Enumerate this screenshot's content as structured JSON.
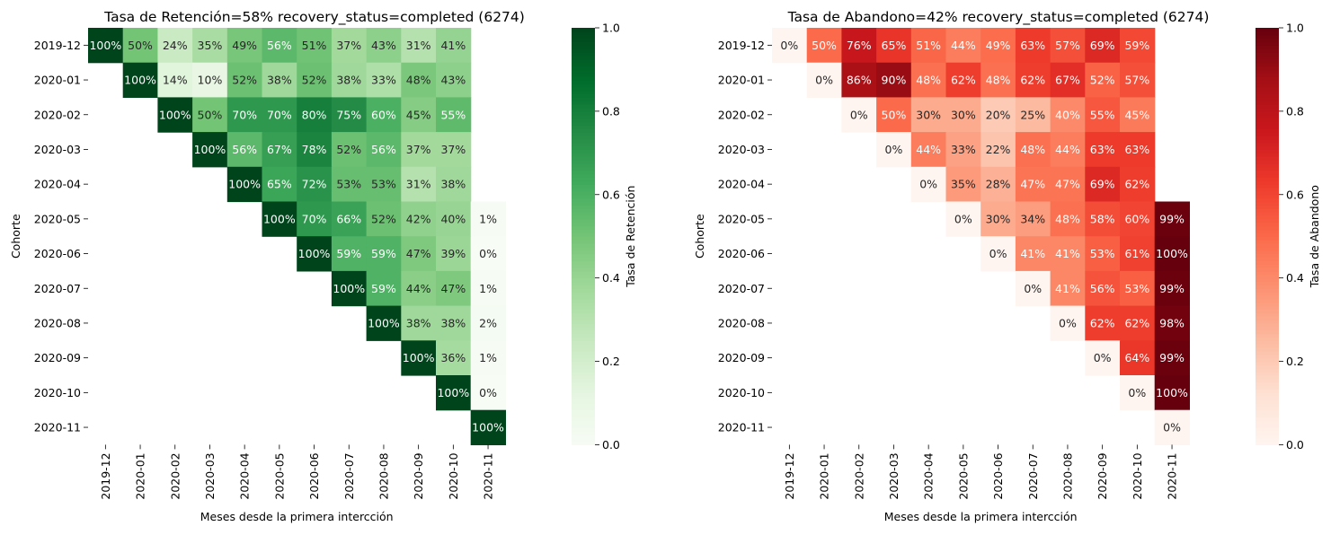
{
  "chart_data": [
    {
      "type": "heatmap",
      "title": "Tasa de Retención=58% recovery_status=completed (6274)",
      "xlabel": "Meses desde la primera intercción",
      "ylabel": "Cohorte",
      "colorbar_label": "Tasa de Retención",
      "colormap": "Greens",
      "colorbar_range": [
        0,
        1
      ],
      "colorbar_ticks": [
        "0.0",
        "0.2",
        "0.4",
        "0.6",
        "0.8",
        "1.0"
      ],
      "rows": [
        "2019-12",
        "2020-01",
        "2020-02",
        "2020-03",
        "2020-04",
        "2020-05",
        "2020-06",
        "2020-07",
        "2020-08",
        "2020-09",
        "2020-10",
        "2020-11"
      ],
      "columns": [
        "2019-12",
        "2020-01",
        "2020-02",
        "2020-03",
        "2020-04",
        "2020-05",
        "2020-06",
        "2020-07",
        "2020-08",
        "2020-09",
        "2020-10",
        "2020-11"
      ],
      "values": [
        [
          1.0,
          0.5,
          0.24,
          0.35,
          0.49,
          0.56,
          0.51,
          0.37,
          0.43,
          0.31,
          0.41,
          null
        ],
        [
          null,
          1.0,
          0.14,
          0.1,
          0.52,
          0.38,
          0.52,
          0.38,
          0.33,
          0.48,
          0.43,
          null
        ],
        [
          null,
          null,
          1.0,
          0.5,
          0.7,
          0.7,
          0.8,
          0.75,
          0.6,
          0.45,
          0.55,
          null
        ],
        [
          null,
          null,
          null,
          1.0,
          0.56,
          0.67,
          0.78,
          0.52,
          0.56,
          0.37,
          0.37,
          null
        ],
        [
          null,
          null,
          null,
          null,
          1.0,
          0.65,
          0.72,
          0.53,
          0.53,
          0.31,
          0.38,
          null
        ],
        [
          null,
          null,
          null,
          null,
          null,
          1.0,
          0.7,
          0.66,
          0.52,
          0.42,
          0.4,
          0.01
        ],
        [
          null,
          null,
          null,
          null,
          null,
          null,
          1.0,
          0.59,
          0.59,
          0.47,
          0.39,
          0.0
        ],
        [
          null,
          null,
          null,
          null,
          null,
          null,
          null,
          1.0,
          0.59,
          0.44,
          0.47,
          0.01
        ],
        [
          null,
          null,
          null,
          null,
          null,
          null,
          null,
          null,
          1.0,
          0.38,
          0.38,
          0.02
        ],
        [
          null,
          null,
          null,
          null,
          null,
          null,
          null,
          null,
          null,
          1.0,
          0.36,
          0.01
        ],
        [
          null,
          null,
          null,
          null,
          null,
          null,
          null,
          null,
          null,
          null,
          1.0,
          0.0
        ],
        [
          null,
          null,
          null,
          null,
          null,
          null,
          null,
          null,
          null,
          null,
          null,
          1.0
        ]
      ],
      "labels": [
        [
          "100%",
          "50%",
          "24%",
          "35%",
          "49%",
          "56%",
          "51%",
          "37%",
          "43%",
          "31%",
          "41%",
          null
        ],
        [
          null,
          "100%",
          "14%",
          "10%",
          "52%",
          "38%",
          "52%",
          "38%",
          "33%",
          "48%",
          "43%",
          null
        ],
        [
          null,
          null,
          "100%",
          "50%",
          "70%",
          "70%",
          "80%",
          "75%",
          "60%",
          "45%",
          "55%",
          null
        ],
        [
          null,
          null,
          null,
          "100%",
          "56%",
          "67%",
          "78%",
          "52%",
          "56%",
          "37%",
          "37%",
          null
        ],
        [
          null,
          null,
          null,
          null,
          "100%",
          "65%",
          "72%",
          "53%",
          "53%",
          "31%",
          "38%",
          null
        ],
        [
          null,
          null,
          null,
          null,
          null,
          "100%",
          "70%",
          "66%",
          "52%",
          "42%",
          "40%",
          "1%"
        ],
        [
          null,
          null,
          null,
          null,
          null,
          null,
          "100%",
          "59%",
          "59%",
          "47%",
          "39%",
          "0%"
        ],
        [
          null,
          null,
          null,
          null,
          null,
          null,
          null,
          "100%",
          "59%",
          "44%",
          "47%",
          "1%"
        ],
        [
          null,
          null,
          null,
          null,
          null,
          null,
          null,
          null,
          "100%",
          "38%",
          "38%",
          "2%"
        ],
        [
          null,
          null,
          null,
          null,
          null,
          null,
          null,
          null,
          null,
          "100%",
          "36%",
          "1%"
        ],
        [
          null,
          null,
          null,
          null,
          null,
          null,
          null,
          null,
          null,
          null,
          "100%",
          "0%"
        ],
        [
          null,
          null,
          null,
          null,
          null,
          null,
          null,
          null,
          null,
          null,
          null,
          "100%"
        ]
      ]
    },
    {
      "type": "heatmap",
      "title": "Tasa de Abandono=42% recovery_status=completed (6274)",
      "xlabel": "Meses desde la primera intercción",
      "ylabel": "Cohorte",
      "colorbar_label": "Tasa de Abandono",
      "colormap": "Reds",
      "colorbar_range": [
        0,
        1
      ],
      "colorbar_ticks": [
        "0.0",
        "0.2",
        "0.4",
        "0.6",
        "0.8",
        "1.0"
      ],
      "rows": [
        "2019-12",
        "2020-01",
        "2020-02",
        "2020-03",
        "2020-04",
        "2020-05",
        "2020-06",
        "2020-07",
        "2020-08",
        "2020-09",
        "2020-10",
        "2020-11"
      ],
      "columns": [
        "2019-12",
        "2020-01",
        "2020-02",
        "2020-03",
        "2020-04",
        "2020-05",
        "2020-06",
        "2020-07",
        "2020-08",
        "2020-09",
        "2020-10",
        "2020-11"
      ],
      "values": [
        [
          0.0,
          0.5,
          0.76,
          0.65,
          0.51,
          0.44,
          0.49,
          0.63,
          0.57,
          0.69,
          0.59,
          null
        ],
        [
          null,
          0.0,
          0.86,
          0.9,
          0.48,
          0.62,
          0.48,
          0.62,
          0.67,
          0.52,
          0.57,
          null
        ],
        [
          null,
          null,
          0.0,
          0.5,
          0.3,
          0.3,
          0.2,
          0.25,
          0.4,
          0.55,
          0.45,
          null
        ],
        [
          null,
          null,
          null,
          0.0,
          0.44,
          0.33,
          0.22,
          0.48,
          0.44,
          0.63,
          0.63,
          null
        ],
        [
          null,
          null,
          null,
          null,
          0.0,
          0.35,
          0.28,
          0.47,
          0.47,
          0.69,
          0.62,
          null
        ],
        [
          null,
          null,
          null,
          null,
          null,
          0.0,
          0.3,
          0.34,
          0.48,
          0.58,
          0.6,
          0.99
        ],
        [
          null,
          null,
          null,
          null,
          null,
          null,
          0.0,
          0.41,
          0.41,
          0.53,
          0.61,
          1.0
        ],
        [
          null,
          null,
          null,
          null,
          null,
          null,
          null,
          0.0,
          0.41,
          0.56,
          0.53,
          0.99
        ],
        [
          null,
          null,
          null,
          null,
          null,
          null,
          null,
          null,
          0.0,
          0.62,
          0.62,
          0.98
        ],
        [
          null,
          null,
          null,
          null,
          null,
          null,
          null,
          null,
          null,
          0.0,
          0.64,
          0.99
        ],
        [
          null,
          null,
          null,
          null,
          null,
          null,
          null,
          null,
          null,
          null,
          0.0,
          1.0
        ],
        [
          null,
          null,
          null,
          null,
          null,
          null,
          null,
          null,
          null,
          null,
          null,
          0.0
        ]
      ],
      "labels": [
        [
          "0%",
          "50%",
          "76%",
          "65%",
          "51%",
          "44%",
          "49%",
          "63%",
          "57%",
          "69%",
          "59%",
          null
        ],
        [
          null,
          "0%",
          "86%",
          "90%",
          "48%",
          "62%",
          "48%",
          "62%",
          "67%",
          "52%",
          "57%",
          null
        ],
        [
          null,
          null,
          "0%",
          "50%",
          "30%",
          "30%",
          "20%",
          "25%",
          "40%",
          "55%",
          "45%",
          null
        ],
        [
          null,
          null,
          null,
          "0%",
          "44%",
          "33%",
          "22%",
          "48%",
          "44%",
          "63%",
          "63%",
          null
        ],
        [
          null,
          null,
          null,
          null,
          "0%",
          "35%",
          "28%",
          "47%",
          "47%",
          "69%",
          "62%",
          null
        ],
        [
          null,
          null,
          null,
          null,
          null,
          "0%",
          "30%",
          "34%",
          "48%",
          "58%",
          "60%",
          "99%"
        ],
        [
          null,
          null,
          null,
          null,
          null,
          null,
          "0%",
          "41%",
          "41%",
          "53%",
          "61%",
          "100%"
        ],
        [
          null,
          null,
          null,
          null,
          null,
          null,
          null,
          "0%",
          "41%",
          "56%",
          "53%",
          "99%"
        ],
        [
          null,
          null,
          null,
          null,
          null,
          null,
          null,
          null,
          "0%",
          "62%",
          "62%",
          "98%"
        ],
        [
          null,
          null,
          null,
          null,
          null,
          null,
          null,
          null,
          null,
          "0%",
          "64%",
          "99%"
        ],
        [
          null,
          null,
          null,
          null,
          null,
          null,
          null,
          null,
          null,
          null,
          "0%",
          "100%"
        ],
        [
          null,
          null,
          null,
          null,
          null,
          null,
          null,
          null,
          null,
          null,
          null,
          "0%"
        ]
      ]
    }
  ]
}
